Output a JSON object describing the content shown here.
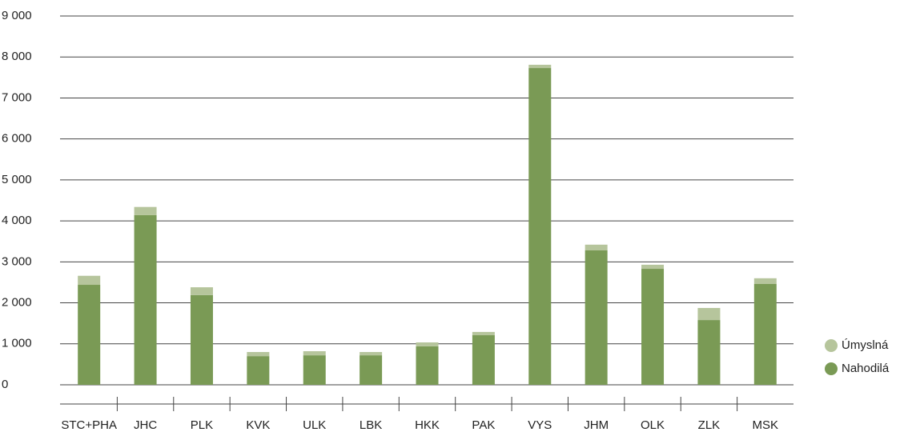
{
  "chart_data": {
    "type": "stacked_bar",
    "categories": [
      "STC+PHA",
      "JHC",
      "PLK",
      "KVK",
      "ULK",
      "LBK",
      "HKK",
      "PAK",
      "VYS",
      "JHM",
      "OLK",
      "ZLK",
      "MSK"
    ],
    "series": [
      {
        "name": "Nahodilá",
        "color": "#7a9a55",
        "values": [
          2440,
          4140,
          2190,
          700,
          720,
          720,
          940,
          1210,
          7730,
          3280,
          2830,
          1580,
          2460
        ]
      },
      {
        "name": "Úmyslná",
        "color": "#b6c59c",
        "values": [
          220,
          200,
          190,
          100,
          100,
          80,
          95,
          80,
          80,
          140,
          100,
          295,
          140
        ]
      }
    ],
    "ylim": [
      0,
      9000
    ],
    "yticks": [
      0,
      {
        "value": 1000,
        "label": "1 000"
      },
      {
        "value": 2000,
        "label": "2 000"
      },
      {
        "value": 3000,
        "label": "3 000"
      },
      {
        "value": 4000,
        "label": "4 000"
      },
      {
        "value": 5000,
        "label": "5 000"
      },
      {
        "value": 6000,
        "label": "6 000"
      },
      {
        "value": 7000,
        "label": "7 000"
      },
      {
        "value": 8000,
        "label": "8 000"
      },
      {
        "value": 9000,
        "label": "9 000"
      }
    ],
    "grid": true
  }
}
